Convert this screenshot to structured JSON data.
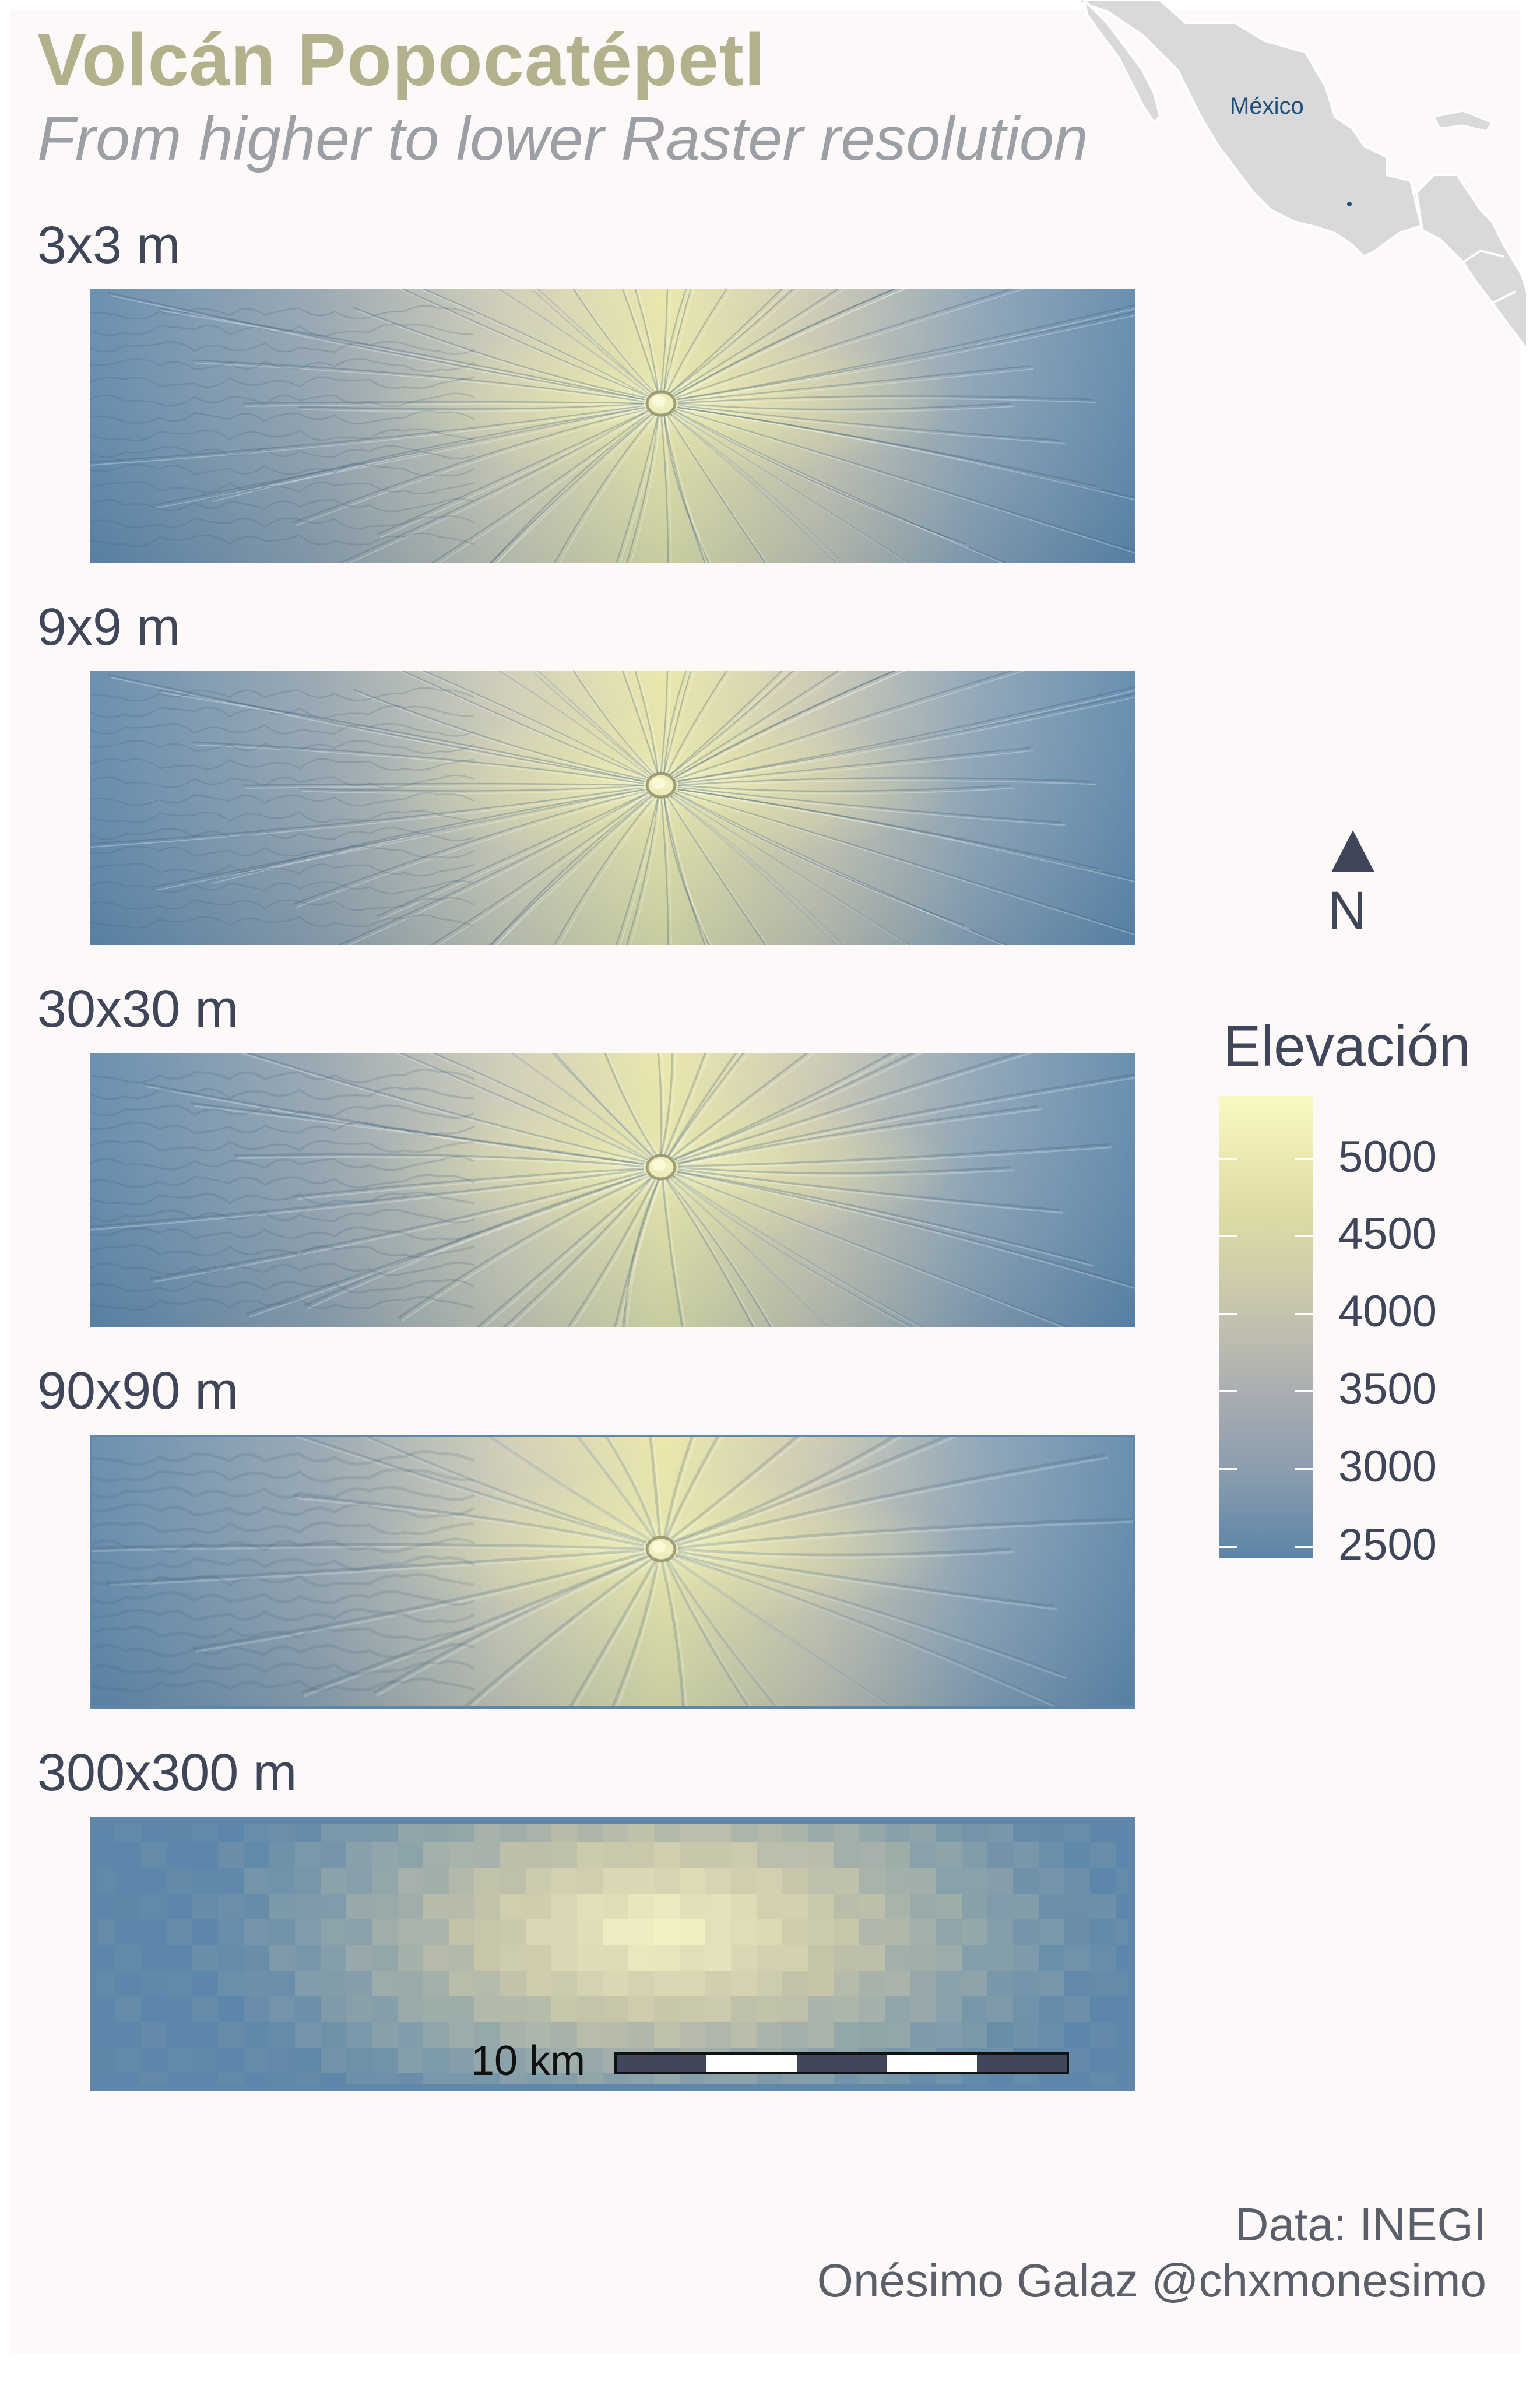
{
  "title": "Volcán Popocatépetl",
  "subtitle": "From higher to lower Raster resolution",
  "inset_map": {
    "country_label": "México"
  },
  "facets": [
    {
      "label": "3x3 m",
      "style": "fine"
    },
    {
      "label": "9x9 m",
      "style": "fine"
    },
    {
      "label": "30x30 m",
      "style": "medium"
    },
    {
      "label": "90x90 m",
      "style": "coarse"
    },
    {
      "label": "300x300 m",
      "style": "pixelated"
    }
  ],
  "north_arrow": {
    "label": "N"
  },
  "legend": {
    "title": "Elevación",
    "ticks": [
      "5000",
      "4500",
      "4000",
      "3500",
      "3000",
      "2500"
    ],
    "colors": {
      "low": "#5c84a8",
      "mid": "#a9adb2",
      "high": "#fbf9c2"
    }
  },
  "scale_bar": {
    "label": "10 km"
  },
  "caption": {
    "source": "Data: INEGI",
    "author": "Onésimo Galaz  @chxmonesimo"
  }
}
